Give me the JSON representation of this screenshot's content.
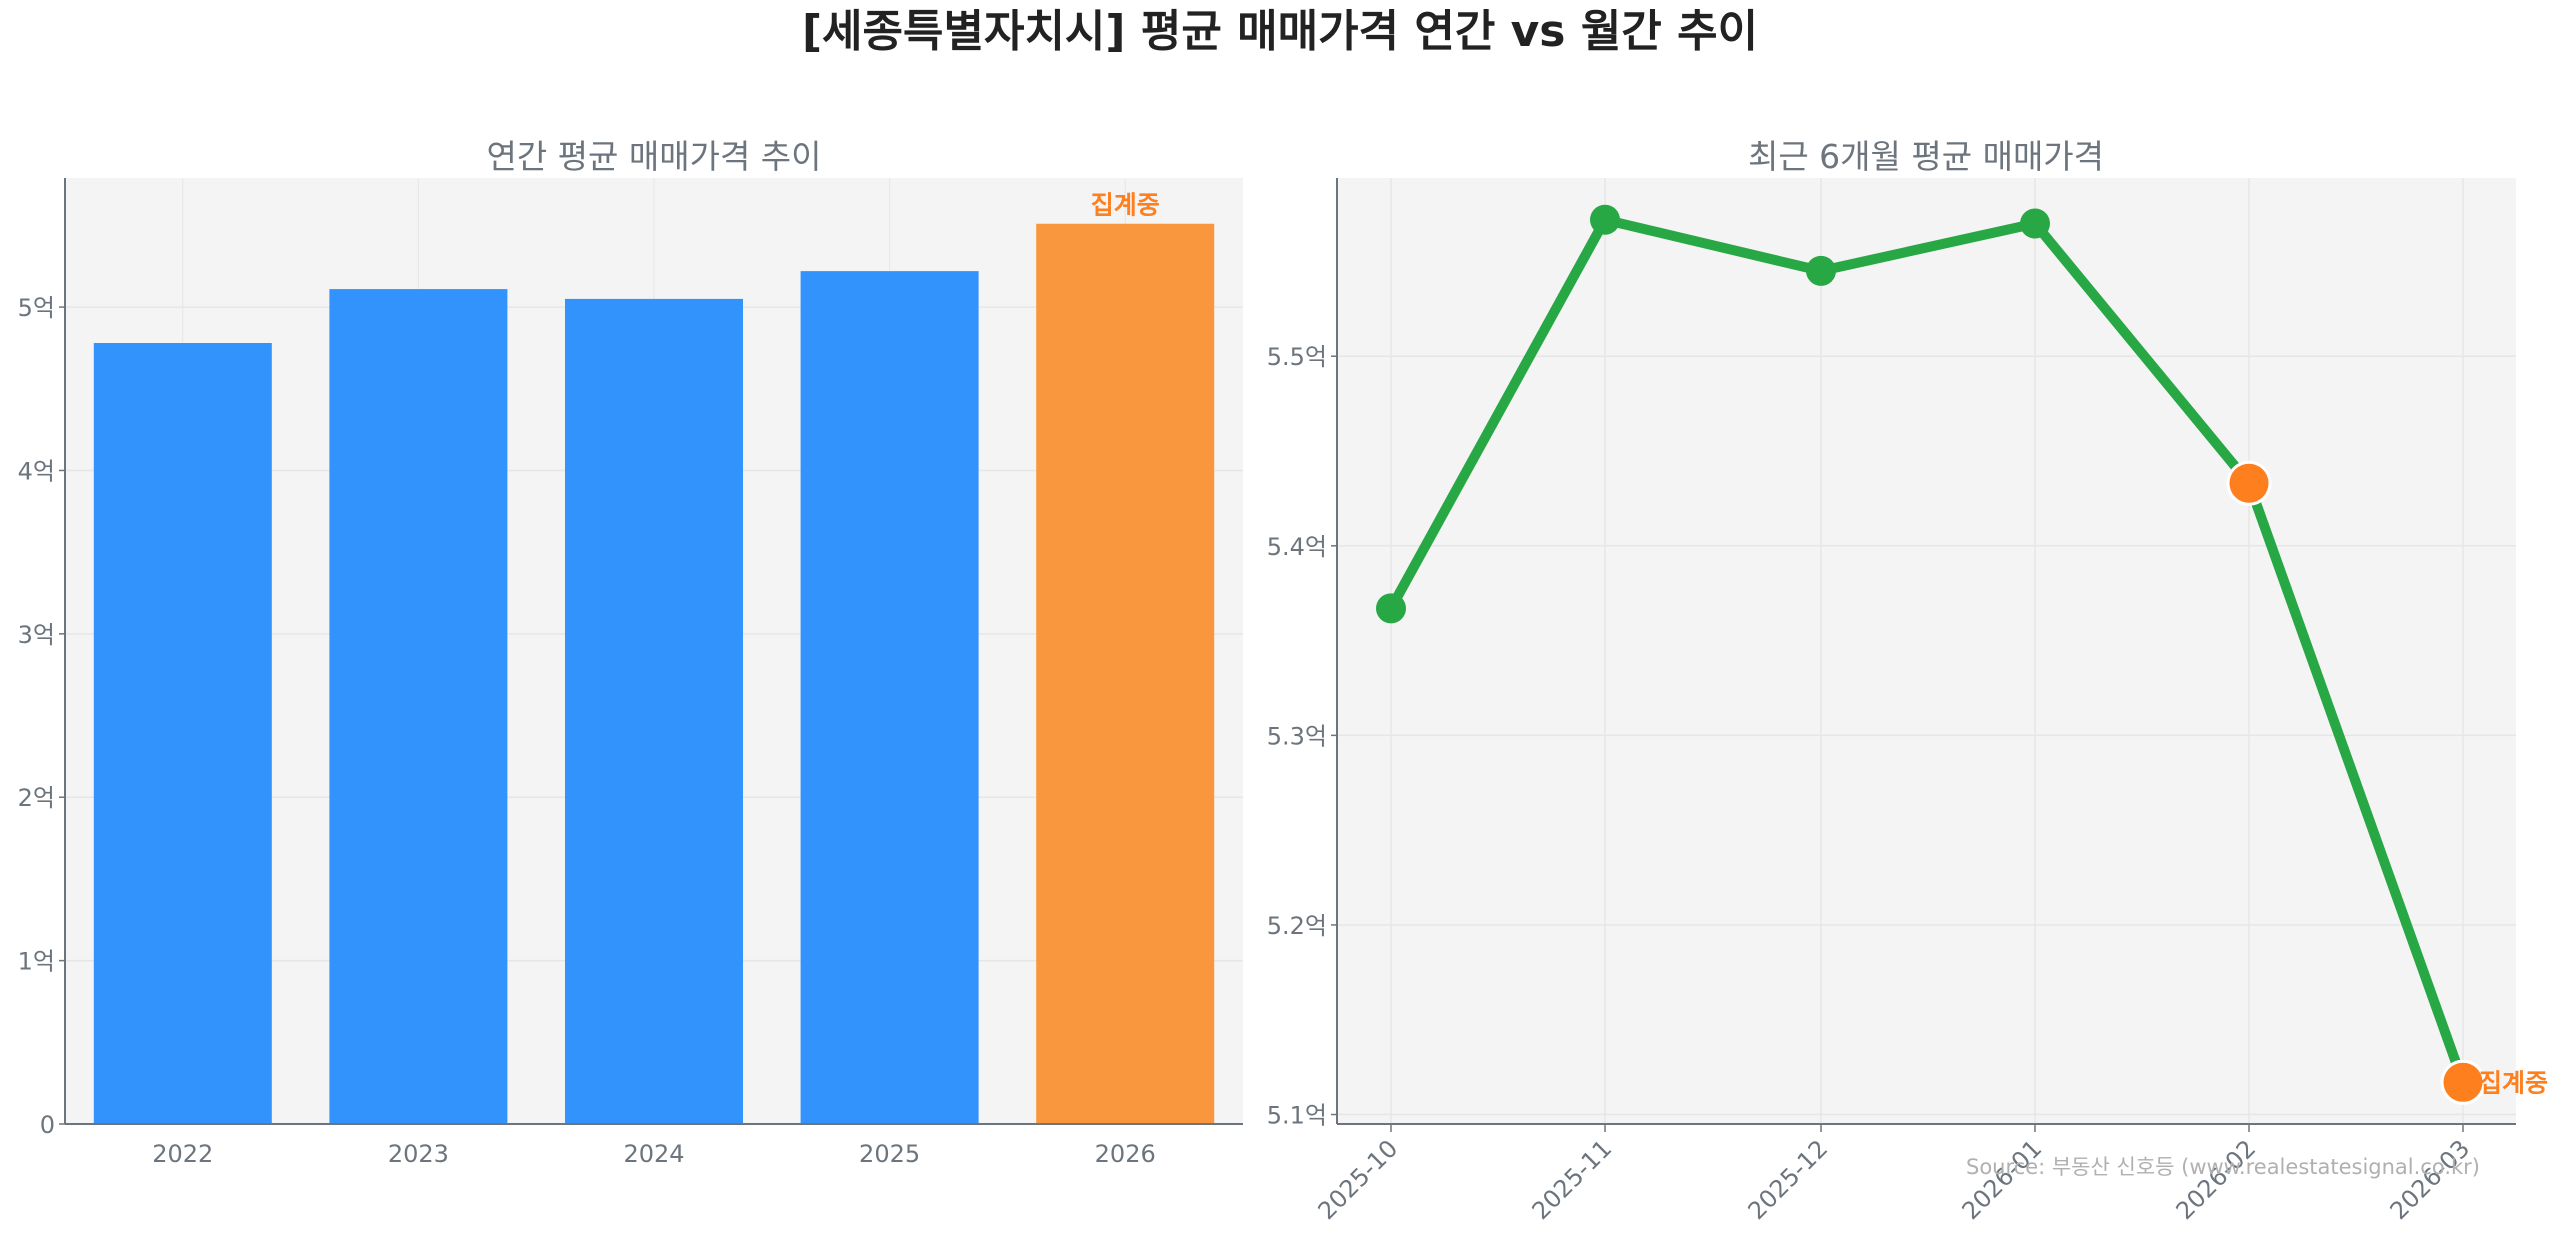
{
  "title": "[세종특별자치시] 평균 매매가격 연간 vs 월간 추이",
  "source": "Source: 부동산 신호등 (www.realestatesignal.co.kr)",
  "colors": {
    "bar": "#3193fb",
    "pending": "#f9973f",
    "pending_marker": "#fd7f1e",
    "line": "#28a745",
    "plot_bg": "#f4f4f4",
    "text": "#6c757d",
    "title": "#222222"
  },
  "chart_data": [
    {
      "type": "bar",
      "title": "연간 평균 매매가격 추이",
      "categories": [
        "2022",
        "2023",
        "2024",
        "2025",
        "2026"
      ],
      "values": [
        4.78,
        5.11,
        5.05,
        5.22,
        5.51
      ],
      "unit": "억",
      "ylim": [
        0,
        5.79
      ],
      "yticks": [
        0,
        1,
        2,
        3,
        4,
        5
      ],
      "ytick_labels": [
        "0",
        "1억",
        "2억",
        "3억",
        "4억",
        "5억"
      ],
      "pending_index": 4,
      "annotation": "집계중",
      "grid": true
    },
    {
      "type": "line",
      "title": "최근 6개월 평균 매매가격",
      "categories": [
        "2025-10",
        "2025-11",
        "2025-12",
        "2026-01",
        "2026-02",
        "2026-03"
      ],
      "values": [
        5.367,
        5.572,
        5.545,
        5.57,
        5.433,
        5.117
      ],
      "unit": "억",
      "ylim": [
        5.095,
        5.594
      ],
      "yticks": [
        5.1,
        5.2,
        5.3,
        5.4,
        5.5
      ],
      "ytick_labels": [
        "5.1억",
        "5.2억",
        "5.3억",
        "5.4억",
        "5.5억"
      ],
      "highlight_indices": [
        4,
        5
      ],
      "annotation": "집계중",
      "grid": true
    }
  ]
}
